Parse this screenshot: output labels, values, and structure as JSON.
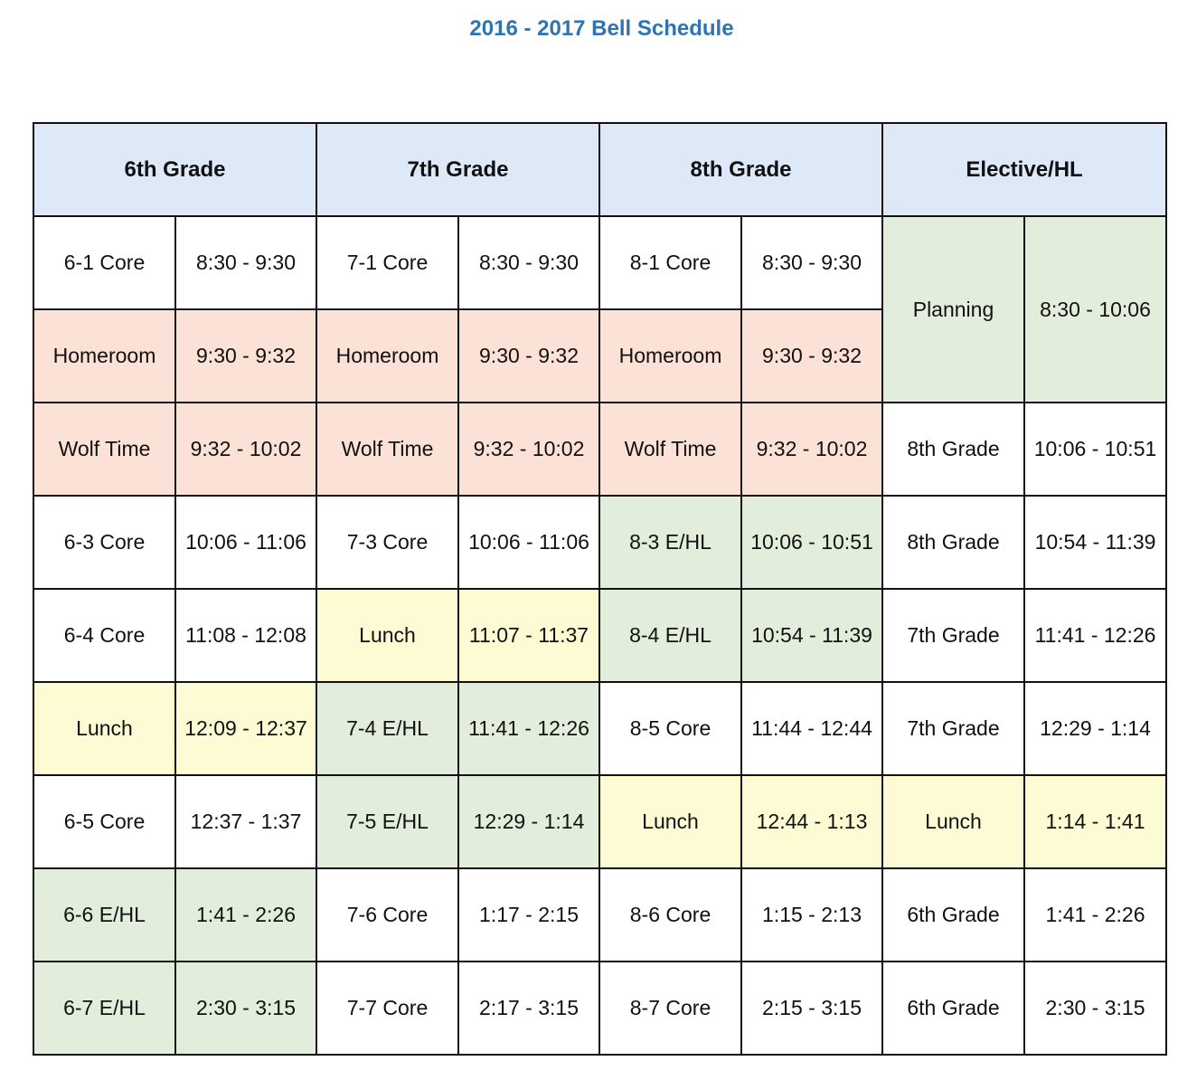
{
  "title": "2016 - 2017 Bell Schedule",
  "headers": [
    "6th Grade",
    "7th Grade",
    "8th Grade",
    "Elective/HL"
  ],
  "colors": {
    "title": "#2e74b5",
    "header": "#dde9f7",
    "pink": "#fbe1d6",
    "green": "#e2eedb",
    "yellow": "#fdfbd4",
    "white": "#ffffff"
  },
  "rows": [
    [
      "6-1 Core",
      "8:30 - 9:30",
      "7-1 Core",
      "8:30 - 9:30",
      "8-1 Core",
      "8:30 - 9:30",
      "Planning",
      "8:30 - 10:06"
    ],
    [
      "Homeroom",
      "9:30 - 9:32",
      "Homeroom",
      "9:30 - 9:32",
      "Homeroom",
      "9:30 - 9:32"
    ],
    [
      "Wolf Time",
      "9:32 - 10:02",
      "Wolf Time",
      "9:32 - 10:02",
      "Wolf Time",
      "9:32 - 10:02",
      "8th Grade",
      "10:06 - 10:51"
    ],
    [
      "6-3 Core",
      "10:06 - 11:06",
      "7-3 Core",
      "10:06 - 11:06",
      "8-3 E/HL",
      "10:06 - 10:51",
      "8th Grade",
      "10:54 - 11:39"
    ],
    [
      "6-4 Core",
      "11:08 - 12:08",
      "Lunch",
      "11:07 - 11:37",
      "8-4 E/HL",
      "10:54 - 11:39",
      "7th Grade",
      "11:41 - 12:26"
    ],
    [
      "Lunch",
      "12:09 - 12:37",
      "7-4 E/HL",
      "11:41 - 12:26",
      "8-5 Core",
      "11:44 - 12:44",
      "7th Grade",
      "12:29 - 1:14"
    ],
    [
      "6-5 Core",
      "12:37 - 1:37",
      "7-5 E/HL",
      "12:29 - 1:14",
      "Lunch",
      "12:44 - 1:13",
      "Lunch",
      "1:14 - 1:41"
    ],
    [
      "6-6 E/HL",
      "1:41 - 2:26",
      "7-6 Core",
      "1:17 - 2:15",
      "8-6 Core",
      "1:15 - 2:13",
      "6th Grade",
      "1:41 - 2:26"
    ],
    [
      "6-7 E/HL",
      "2:30 - 3:15",
      "7-7 Core",
      "2:17 - 3:15",
      "8-7 Core",
      "2:15 - 3:15",
      "6th Grade",
      "2:30 - 3:15"
    ]
  ]
}
